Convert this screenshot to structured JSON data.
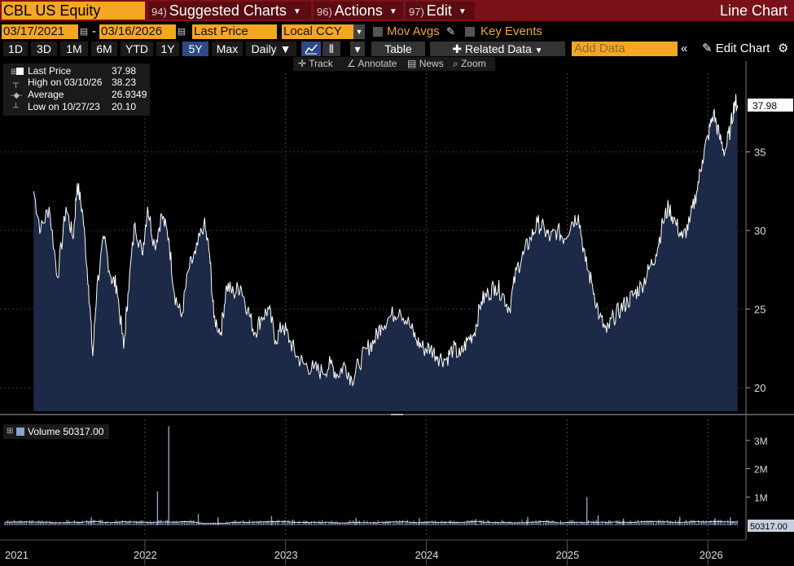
{
  "header": {
    "security": "CBL US Equity",
    "menus": [
      {
        "num": "94)",
        "label": "Suggested Charts"
      },
      {
        "num": "96)",
        "label": "Actions"
      },
      {
        "num": "97)",
        "label": "Edit"
      }
    ],
    "chart_title": "Line Chart"
  },
  "controls": {
    "start_date": "03/17/2021",
    "end_date": "03/16/2026",
    "field": "Last Price",
    "currency": "Local CCY",
    "mov_avgs": "Mov Avgs",
    "key_events": "Key Events",
    "ranges": [
      "1D",
      "3D",
      "1M",
      "6M",
      "YTD",
      "1Y",
      "5Y",
      "Max"
    ],
    "active_range": "5Y",
    "frequency": "Daily",
    "table": "Table",
    "related_data": "Related Data",
    "add_data_placeholder": "Add Data",
    "edit_chart": "Edit Chart"
  },
  "tools": {
    "track": "Track",
    "annotate": "Annotate",
    "news": "News",
    "zoom": "Zoom"
  },
  "legend": {
    "last_price_label": "Last Price",
    "last_price_value": "37.98",
    "high_label": "High on 03/10/26",
    "high_value": "38.23",
    "average_label": "Average",
    "average_value": "26.9349",
    "low_label": "Low on 10/27/23",
    "low_value": "20.10"
  },
  "volume_legend": "Volume 50317.00",
  "colors": {
    "area": "#1c2a48",
    "line": "#ffffff",
    "volume": "#8ea3c7",
    "accent": "#f5a623",
    "topbar": "#7a1118"
  },
  "chart_data": [
    {
      "type": "area",
      "series": [
        {
          "name": "Last Price"
        }
      ],
      "x_ticks": [
        "2021",
        "2022",
        "2023",
        "2024",
        "2025",
        "2026"
      ],
      "y_ticks": [
        20,
        25,
        30,
        35
      ],
      "ylim": [
        18.5,
        40
      ],
      "last_value_label": "37.98",
      "points": [
        [
          2021.21,
          32.5
        ],
        [
          2021.26,
          30.0
        ],
        [
          2021.32,
          31.5
        ],
        [
          2021.38,
          27.0
        ],
        [
          2021.44,
          31.5
        ],
        [
          2021.49,
          29.5
        ],
        [
          2021.52,
          33.0
        ],
        [
          2021.56,
          31.0
        ],
        [
          2021.6,
          26.5
        ],
        [
          2021.63,
          22.0
        ],
        [
          2021.66,
          26.5
        ],
        [
          2021.71,
          29.5
        ],
        [
          2021.76,
          27.0
        ],
        [
          2021.8,
          26.5
        ],
        [
          2021.85,
          22.5
        ],
        [
          2021.88,
          26.0
        ],
        [
          2021.93,
          30.5
        ],
        [
          2021.98,
          28.5
        ],
        [
          2022.02,
          31.5
        ],
        [
          2022.07,
          29.0
        ],
        [
          2022.12,
          31.0
        ],
        [
          2022.17,
          29.5
        ],
        [
          2022.21,
          26.0
        ],
        [
          2022.26,
          24.5
        ],
        [
          2022.31,
          27.5
        ],
        [
          2022.36,
          28.5
        ],
        [
          2022.42,
          30.5
        ],
        [
          2022.46,
          28.5
        ],
        [
          2022.49,
          24.5
        ],
        [
          2022.54,
          23.5
        ],
        [
          2022.58,
          26.5
        ],
        [
          2022.63,
          26.0
        ],
        [
          2022.68,
          26.5
        ],
        [
          2022.73,
          25.0
        ],
        [
          2022.78,
          23.5
        ],
        [
          2022.83,
          24.5
        ],
        [
          2022.88,
          25.0
        ],
        [
          2022.93,
          23.0
        ],
        [
          2022.98,
          24.0
        ],
        [
          2023.03,
          23.0
        ],
        [
          2023.08,
          22.0
        ],
        [
          2023.13,
          21.5
        ],
        [
          2023.2,
          21.2
        ],
        [
          2023.26,
          21.0
        ],
        [
          2023.32,
          21.5
        ],
        [
          2023.37,
          20.8
        ],
        [
          2023.42,
          21.5
        ],
        [
          2023.47,
          20.5
        ],
        [
          2023.52,
          21.5
        ],
        [
          2023.58,
          22.5
        ],
        [
          2023.63,
          23.0
        ],
        [
          2023.68,
          24.0
        ],
        [
          2023.74,
          24.5
        ],
        [
          2023.81,
          25.0
        ],
        [
          2023.88,
          24.0
        ],
        [
          2023.93,
          23.0
        ],
        [
          2023.98,
          22.5
        ],
        [
          2024.03,
          22.5
        ],
        [
          2024.08,
          22.0
        ],
        [
          2024.14,
          21.8
        ],
        [
          2024.19,
          22.5
        ],
        [
          2024.24,
          22.0
        ],
        [
          2024.29,
          23.0
        ],
        [
          2024.34,
          23.5
        ],
        [
          2024.39,
          25.5
        ],
        [
          2024.44,
          26.0
        ],
        [
          2024.49,
          26.5
        ],
        [
          2024.54,
          26.0
        ],
        [
          2024.59,
          25.0
        ],
        [
          2024.64,
          27.5
        ],
        [
          2024.69,
          28.5
        ],
        [
          2024.74,
          29.5
        ],
        [
          2024.79,
          30.5
        ],
        [
          2024.84,
          30.0
        ],
        [
          2024.88,
          29.5
        ],
        [
          2024.93,
          30.0
        ],
        [
          2024.98,
          29.5
        ],
        [
          2025.03,
          30.5
        ],
        [
          2025.08,
          31.0
        ],
        [
          2025.13,
          28.0
        ],
        [
          2025.18,
          26.5
        ],
        [
          2025.23,
          24.5
        ],
        [
          2025.28,
          23.5
        ],
        [
          2025.33,
          24.5
        ],
        [
          2025.38,
          25.0
        ],
        [
          2025.43,
          25.5
        ],
        [
          2025.48,
          26.0
        ],
        [
          2025.53,
          26.5
        ],
        [
          2025.58,
          27.5
        ],
        [
          2025.63,
          28.5
        ],
        [
          2025.68,
          30.5
        ],
        [
          2025.72,
          31.5
        ],
        [
          2025.77,
          30.5
        ],
        [
          2025.82,
          29.5
        ],
        [
          2025.87,
          30.5
        ],
        [
          2025.92,
          32.5
        ],
        [
          2025.96,
          34.5
        ],
        [
          2026.0,
          36.0
        ],
        [
          2026.04,
          37.5
        ],
        [
          2026.08,
          36.0
        ],
        [
          2026.12,
          35.0
        ],
        [
          2026.16,
          36.5
        ],
        [
          2026.19,
          38.23
        ],
        [
          2026.21,
          37.98
        ]
      ]
    },
    {
      "type": "bar",
      "series": [
        {
          "name": "Volume"
        }
      ],
      "y_ticks": [
        "1M",
        "2M",
        "3M"
      ],
      "ylim": [
        0,
        3600000
      ],
      "last_value_label": "50317.00",
      "spikes": [
        [
          2021.62,
          280000
        ],
        [
          2022.09,
          1200000
        ],
        [
          2022.17,
          3500000
        ],
        [
          2022.38,
          400000
        ],
        [
          2022.52,
          280000
        ],
        [
          2022.9,
          320000
        ],
        [
          2023.05,
          200000
        ],
        [
          2023.5,
          260000
        ],
        [
          2023.95,
          250000
        ],
        [
          2024.35,
          220000
        ],
        [
          2024.72,
          300000
        ],
        [
          2025.14,
          1000000
        ],
        [
          2025.22,
          350000
        ],
        [
          2025.4,
          240000
        ],
        [
          2025.8,
          300000
        ],
        [
          2026.05,
          250000
        ],
        [
          2026.16,
          280000
        ]
      ]
    }
  ]
}
